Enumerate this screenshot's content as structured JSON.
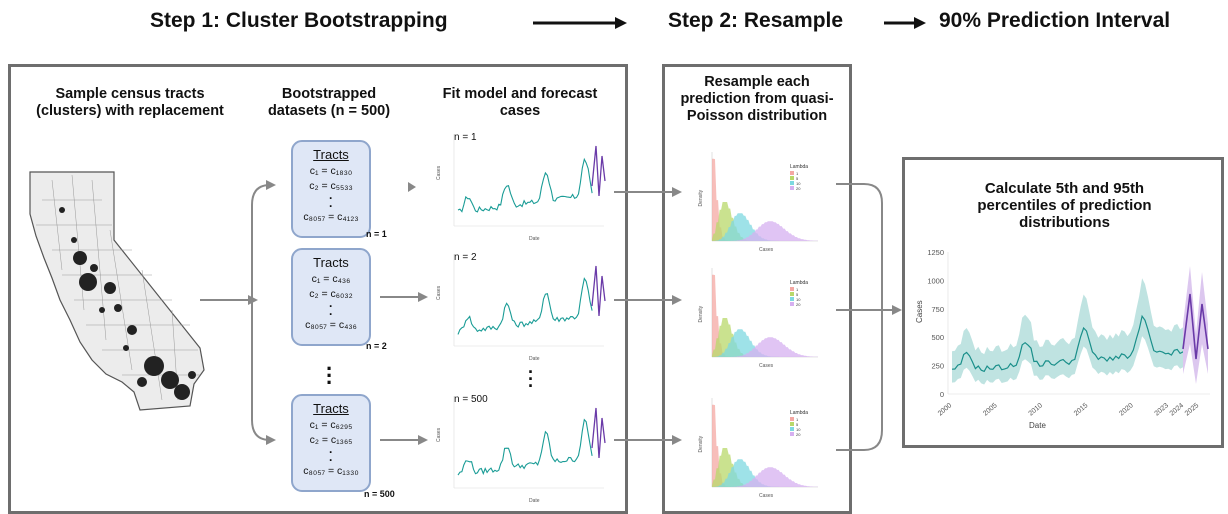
{
  "header": {
    "step1": "Step 1: Cluster Bootstrapping",
    "step2": "Step 2: Resample",
    "step3": "90% Prediction Interval"
  },
  "col1": {
    "title_line1": "Sample census tracts",
    "title_line2": "(clusters) with replacement"
  },
  "col2": {
    "title_line1": "Bootstrapped",
    "title_line2": "datasets (n = 500)"
  },
  "col3": {
    "title_line1": "Fit model and forecast",
    "title_line2": "cases"
  },
  "col4": {
    "title_line1": "Resample each",
    "title_line2": "prediction from quasi-",
    "title_line3": "Poisson distribution"
  },
  "col5": {
    "title_line1": "Calculate 5th and 95th",
    "title_line2": "percentiles of prediction",
    "title_line3": "distributions"
  },
  "datasets": [
    {
      "header": "Tracts",
      "row1_lhs": "c₁",
      "row1_rhs": "c₁₈₃₀",
      "row2_lhs": "c₂",
      "row2_rhs": "c₅₅₃₃",
      "row3_lhs": "c₈₀₅₇",
      "row3_rhs": "c₄₁₂₃",
      "n_label": "n = 1"
    },
    {
      "header": "Tracts",
      "row1_lhs": "c₁",
      "row1_rhs": "c₄₃₆",
      "row2_lhs": "c₂",
      "row2_rhs": "c₆₀₃₂",
      "row3_lhs": "c₈₀₅₇",
      "row3_rhs": "c₄₃₆",
      "n_label": "n = 2"
    },
    {
      "header": "Tracts",
      "row1_lhs": "c₁",
      "row1_rhs": "c₆₂₉₅",
      "row2_lhs": "c₂",
      "row2_rhs": "c₁₃₆₅",
      "row3_lhs": "c₈₀₅₇",
      "row3_rhs": "c₁₃₃₀",
      "n_label": "n = 500"
    }
  ],
  "forecast_plots": [
    {
      "n_label": "n = 1",
      "ylabel": "Cases",
      "xlabel": "Date"
    },
    {
      "n_label": "n = 2",
      "ylabel": "Cases",
      "xlabel": "Date"
    },
    {
      "n_label": "n = 500",
      "ylabel": "Cases",
      "xlabel": "Date"
    }
  ],
  "density_plots": {
    "ylabel": "Density",
    "xlabel": "Cases",
    "legend_title": "Lambda",
    "legend_items": [
      "1",
      "5",
      "10",
      "20"
    ],
    "colors": [
      "#f4a8a3",
      "#b8d86a",
      "#7dd8e0",
      "#d6b0f0"
    ]
  },
  "final_plot": {
    "ylabel": "Cases",
    "xlabel": "Date",
    "yticks": [
      "0",
      "250",
      "500",
      "750",
      "1000",
      "1250"
    ],
    "xticks": [
      "2000",
      "2005",
      "2010",
      "2015",
      "2020",
      "2023",
      "2024",
      "2025"
    ],
    "band_color": "#bfe3e1",
    "line_color": "#1a8f8a",
    "forecast_color": "#6a3aa8",
    "forecast_band": "#dcc7ef"
  }
}
